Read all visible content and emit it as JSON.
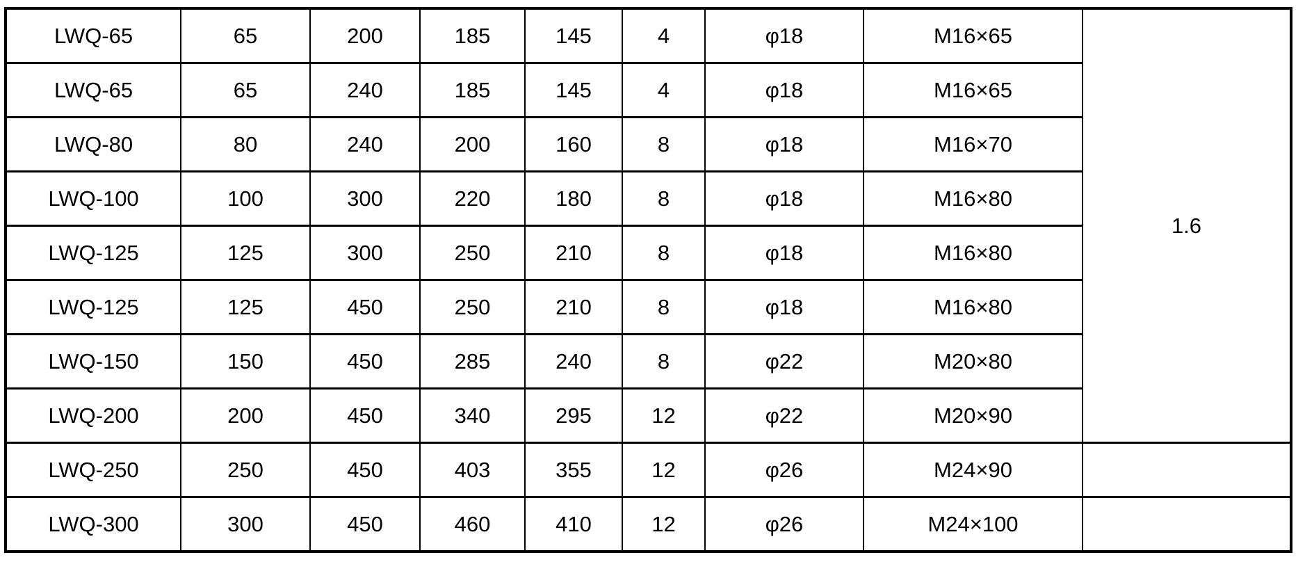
{
  "table": {
    "description_cells_per_row": 8,
    "merged_cell": {
      "value": "1.6",
      "rowspan": 8
    },
    "rows": [
      {
        "cells": [
          "LWQ-65",
          "65",
          "200",
          "185",
          "145",
          "4",
          "φ18",
          "M16×65"
        ]
      },
      {
        "cells": [
          "LWQ-65",
          "65",
          "240",
          "185",
          "145",
          "4",
          "φ18",
          "M16×65"
        ]
      },
      {
        "cells": [
          "LWQ-80",
          "80",
          "240",
          "200",
          "160",
          "8",
          "φ18",
          "M16×70"
        ]
      },
      {
        "cells": [
          "LWQ-100",
          "100",
          "300",
          "220",
          "180",
          "8",
          "φ18",
          "M16×80"
        ]
      },
      {
        "cells": [
          "LWQ-125",
          "125",
          "300",
          "250",
          "210",
          "8",
          "φ18",
          "M16×80"
        ]
      },
      {
        "cells": [
          "LWQ-125",
          "125",
          "450",
          "250",
          "210",
          "8",
          "φ18",
          "M16×80"
        ]
      },
      {
        "cells": [
          "LWQ-150",
          "150",
          "450",
          "285",
          "240",
          "8",
          "φ22",
          "M20×80"
        ]
      },
      {
        "cells": [
          "LWQ-200",
          "200",
          "450",
          "340",
          "295",
          "12",
          "φ22",
          "M20×90"
        ]
      },
      {
        "cells": [
          "LWQ-250",
          "250",
          "450",
          "403",
          "355",
          "12",
          "φ26",
          "M24×90"
        ],
        "last": ""
      },
      {
        "cells": [
          "LWQ-300",
          "300",
          "450",
          "460",
          "410",
          "12",
          "φ26",
          "M24×100"
        ],
        "last": ""
      }
    ],
    "colors": {
      "border": "#000000",
      "text": "#000000",
      "background": "#ffffff"
    }
  }
}
